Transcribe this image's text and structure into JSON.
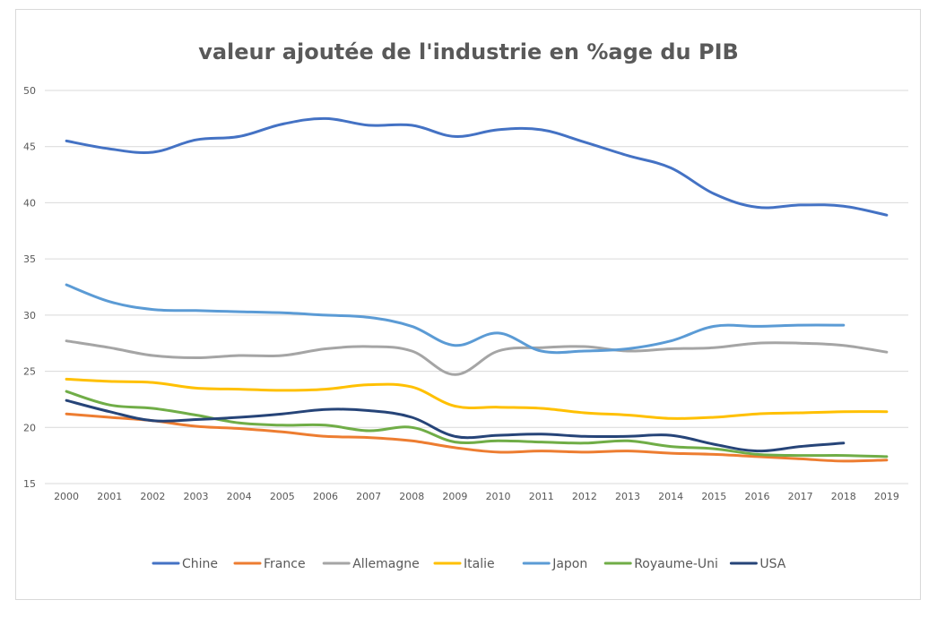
{
  "chart_data": {
    "type": "line",
    "title": "valeur ajoutée de l'industrie en %age du PIB",
    "xlabel": "",
    "ylabel": "",
    "categories": [
      "2000",
      "2001",
      "2002",
      "2003",
      "2004",
      "2005",
      "2006",
      "2007",
      "2008",
      "2009",
      "2010",
      "2011",
      "2012",
      "2013",
      "2014",
      "2015",
      "2016",
      "2017",
      "2018",
      "2019"
    ],
    "ylim": [
      15,
      50
    ],
    "yticks": [
      15,
      20,
      25,
      30,
      35,
      40,
      45,
      50
    ],
    "grid": "horizontal",
    "legend_position": "bottom",
    "series": [
      {
        "name": "Chine",
        "color": "#4472c4",
        "values": [
          45.5,
          44.8,
          44.5,
          45.6,
          45.9,
          47.0,
          47.5,
          46.9,
          46.9,
          45.9,
          46.5,
          46.5,
          45.4,
          44.2,
          43.1,
          40.8,
          39.6,
          39.8,
          39.7,
          38.9
        ]
      },
      {
        "name": "France",
        "color": "#ed7d31",
        "values": [
          21.2,
          20.9,
          20.6,
          20.1,
          19.9,
          19.6,
          19.2,
          19.1,
          18.8,
          18.2,
          17.8,
          17.9,
          17.8,
          17.9,
          17.7,
          17.6,
          17.4,
          17.2,
          17.0,
          17.1
        ]
      },
      {
        "name": "Allemagne",
        "color": "#a5a5a5",
        "values": [
          27.7,
          27.1,
          26.4,
          26.2,
          26.4,
          26.4,
          27.0,
          27.2,
          26.8,
          24.7,
          26.8,
          27.1,
          27.2,
          26.8,
          27.0,
          27.1,
          27.5,
          27.5,
          27.3,
          26.7
        ]
      },
      {
        "name": "Italie",
        "color": "#ffc000",
        "values": [
          24.3,
          24.1,
          24.0,
          23.5,
          23.4,
          23.3,
          23.4,
          23.8,
          23.6,
          21.9,
          21.8,
          21.7,
          21.3,
          21.1,
          20.8,
          20.9,
          21.2,
          21.3,
          21.4,
          21.4
        ]
      },
      {
        "name": "Japon",
        "color": "#5b9bd5",
        "values": [
          32.7,
          31.2,
          30.5,
          30.4,
          30.3,
          30.2,
          30.0,
          29.8,
          29.0,
          27.3,
          28.4,
          26.8,
          26.8,
          27.0,
          27.7,
          29.0,
          29.0,
          29.1,
          29.1,
          null
        ]
      },
      {
        "name": "Royaume-Uni",
        "color": "#70ad47",
        "values": [
          23.2,
          22.0,
          21.7,
          21.1,
          20.4,
          20.2,
          20.2,
          19.7,
          20.0,
          18.7,
          18.8,
          18.7,
          18.6,
          18.8,
          18.3,
          18.1,
          17.6,
          17.5,
          17.5,
          17.4
        ]
      },
      {
        "name": "USA",
        "color": "#264478",
        "values": [
          22.4,
          21.4,
          20.6,
          20.7,
          20.9,
          21.2,
          21.6,
          21.5,
          20.9,
          19.2,
          19.3,
          19.4,
          19.2,
          19.2,
          19.3,
          18.5,
          17.9,
          18.3,
          18.6,
          null
        ]
      }
    ]
  }
}
